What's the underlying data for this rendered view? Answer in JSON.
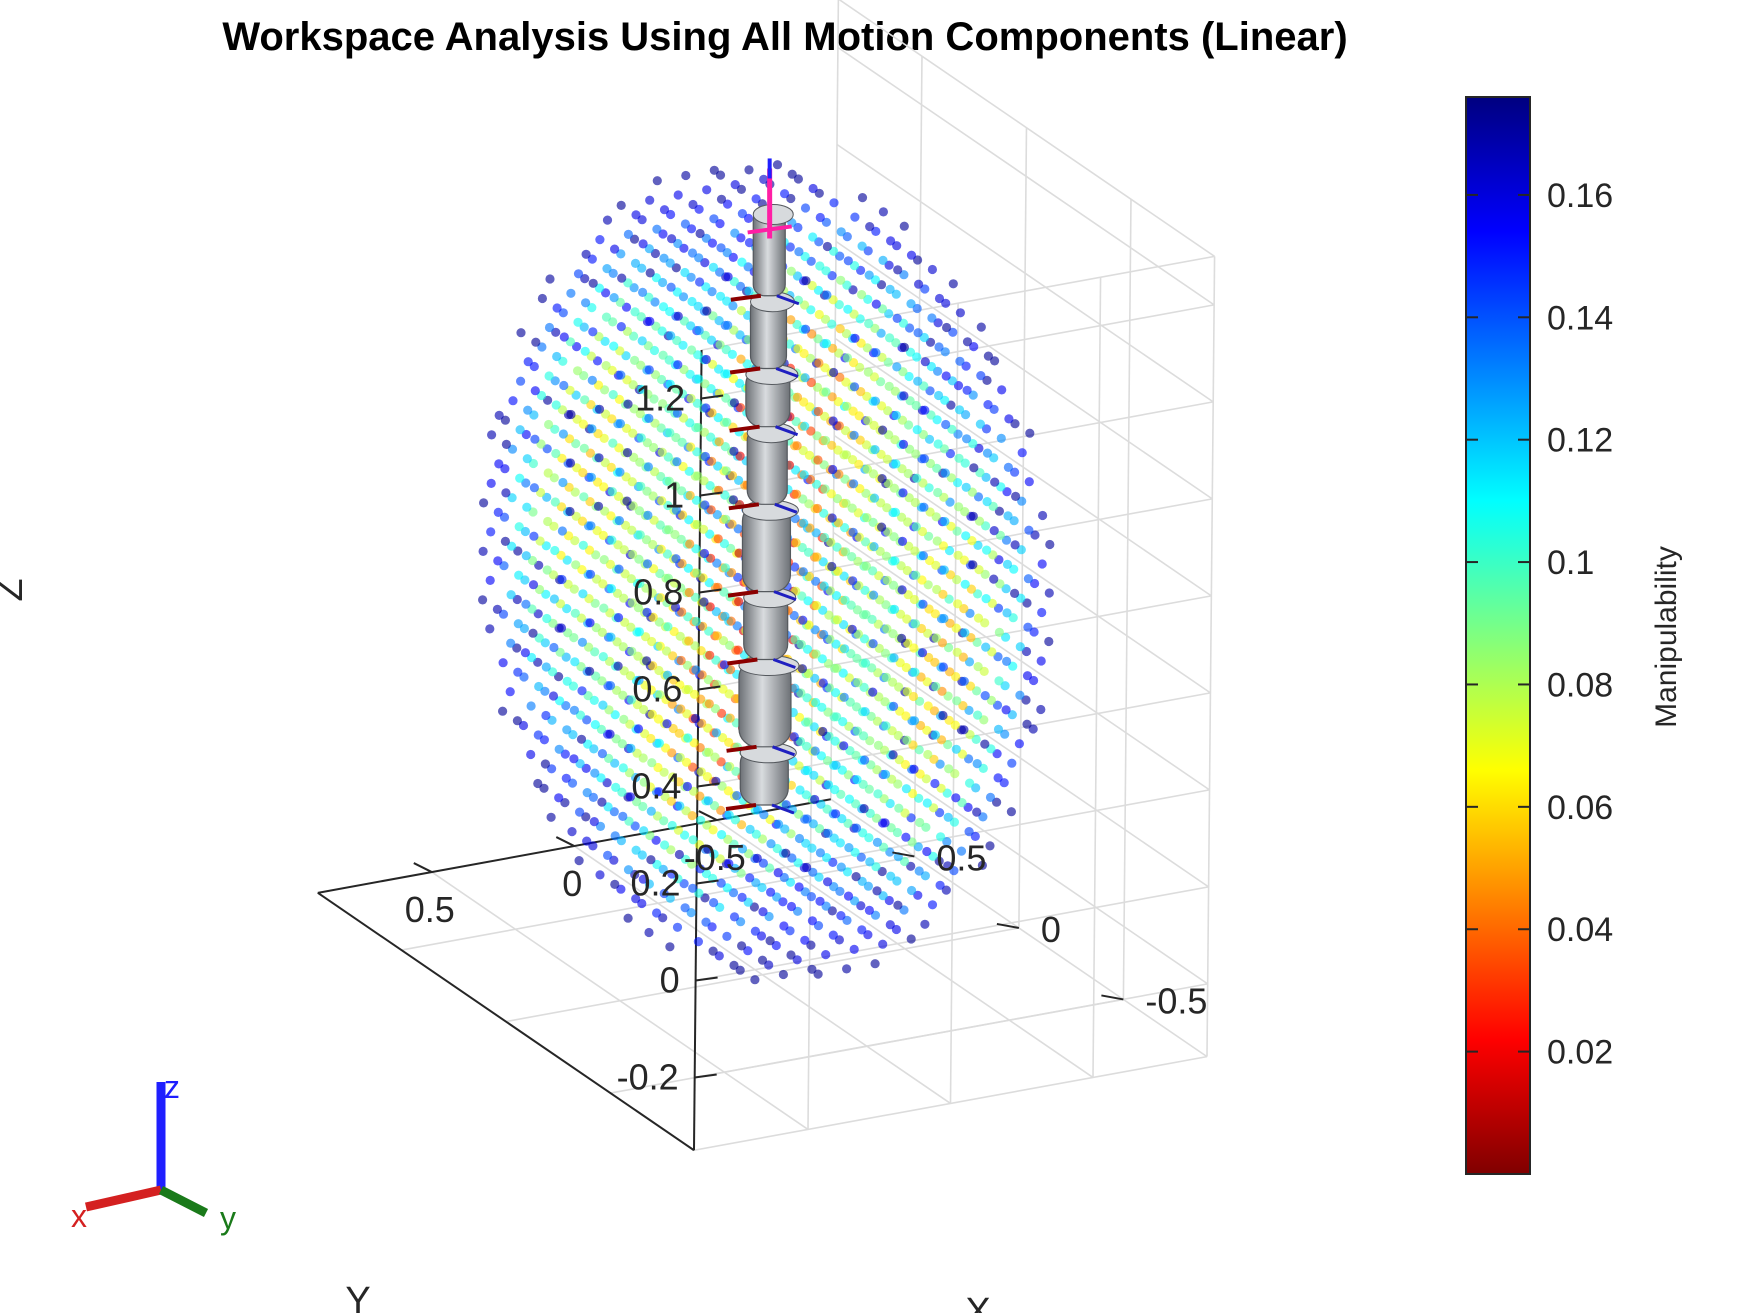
{
  "chart_data": {
    "type": "scatter",
    "title": "Workspace Analysis Using All Motion Components (Linear)",
    "xlabel": "X",
    "ylabel": "Y",
    "zlabel": "Z",
    "x_ticks": [
      "-0.5",
      "0",
      "0.5"
    ],
    "y_ticks": [
      "-0.5",
      "0",
      "0.5"
    ],
    "z_ticks": [
      "-0.2",
      "0",
      "0.2",
      "0.4",
      "0.6",
      "0.8",
      "1",
      "1.2"
    ],
    "xlim": [
      -0.9,
      0.9
    ],
    "ylim": [
      -0.9,
      0.9
    ],
    "zlim": [
      -0.35,
      1.3
    ],
    "grid": true,
    "colormap": "jet",
    "colorbar": {
      "label": "Manipulability",
      "ticks": [
        "0.02",
        "0.04",
        "0.06",
        "0.08",
        "0.1",
        "0.12",
        "0.14",
        "0.16"
      ],
      "range": [
        0.0,
        0.176
      ]
    },
    "workspace": {
      "shape": "sphere",
      "center": [
        0,
        0,
        0.48
      ],
      "radius": 0.82,
      "grid_step": 0.1,
      "manipulability_max": 0.17
    },
    "robot": {
      "base": [
        0,
        0,
        0
      ],
      "tip": [
        0,
        0,
        1.23
      ],
      "colors": {
        "link": "#9a9ea4",
        "highlight": "#d7dadd"
      }
    },
    "triad": {
      "x": {
        "label": "x",
        "color": "#d42020"
      },
      "y": {
        "label": "y",
        "color": "#1a7a1a"
      },
      "z": {
        "label": "z",
        "color": "#1f1fff"
      }
    }
  }
}
